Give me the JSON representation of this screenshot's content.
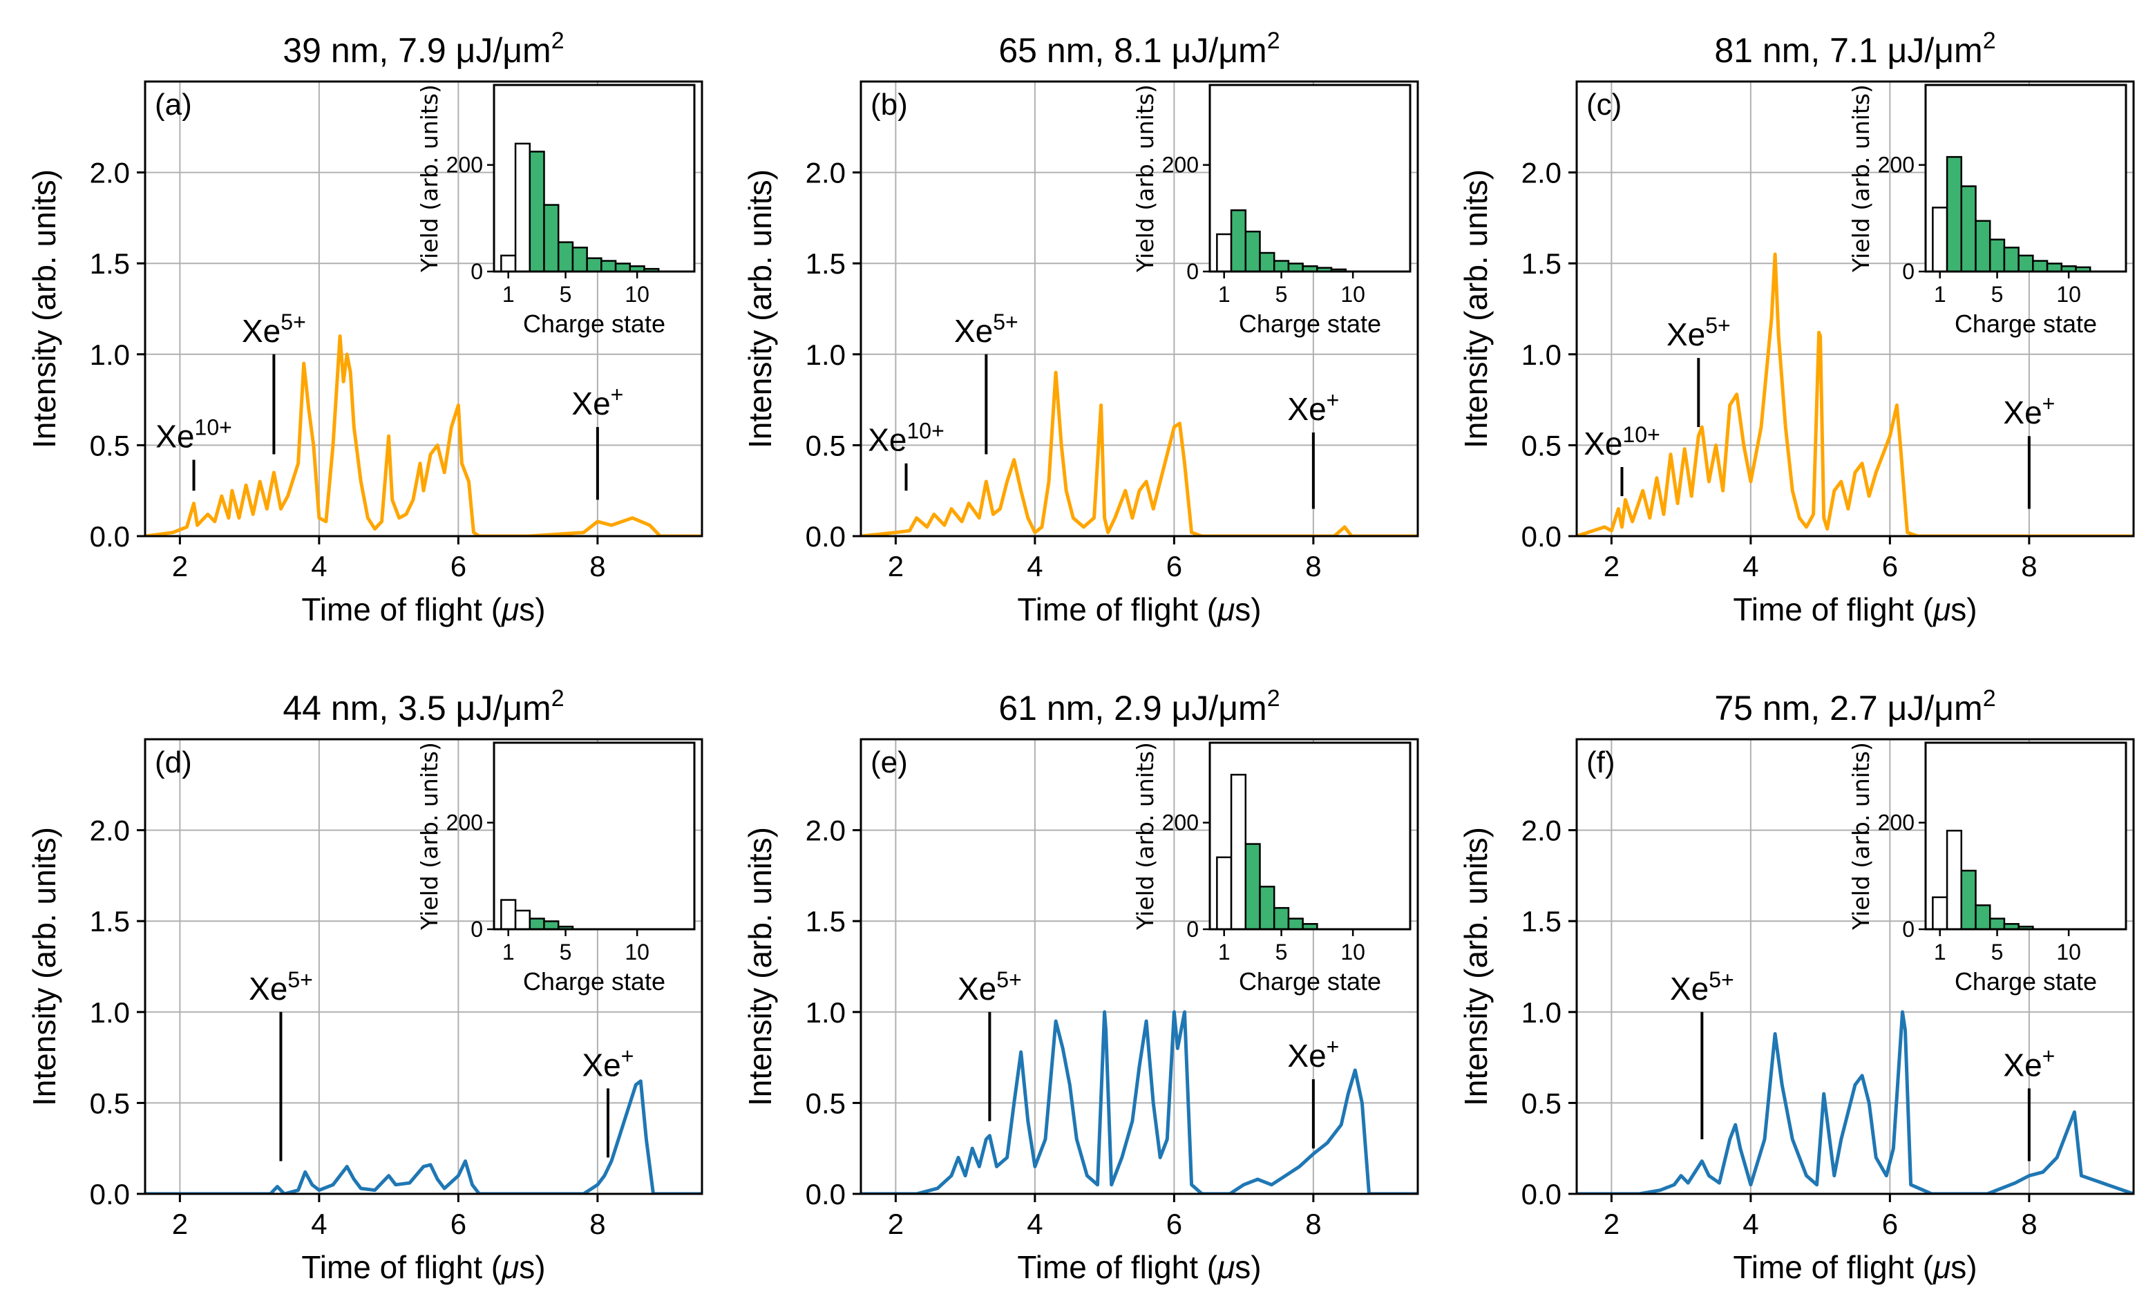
{
  "figure": {
    "shared": {
      "xlabel_prefix": "Time of flight (",
      "xlabel_mu": "μ",
      "xlabel_suffix": "s)",
      "ylabel": "Intensity (arb. units)",
      "inset_xlabel": "Charge state",
      "inset_ylabel": "Yield (arb. units)",
      "ion_base": "Xe",
      "colors": {
        "strong": "#FFA500",
        "weak": "#1F77B4",
        "green": "#3CB371",
        "open": "#FFFFFF"
      }
    }
  },
  "chart_data": [
    {
      "type": "line",
      "label": "(a)",
      "title": "39 nm, 7.9 μJ/μm",
      "title_sup": "2",
      "color": "strong",
      "xlim": [
        1.5,
        9.5
      ],
      "ylim": [
        0,
        2.5
      ],
      "xticks": [
        2,
        4,
        6,
        8
      ],
      "yticks": [
        0.0,
        0.5,
        1.0,
        1.5,
        2.0
      ],
      "xtick_labels": [
        "2",
        "4",
        "6",
        "8"
      ],
      "ytick_labels": [
        "0.0",
        "0.5",
        "1.0",
        "1.5",
        "2.0"
      ],
      "segment_x": [
        1.5,
        1.9,
        2.1,
        2.2,
        2.25,
        2.4,
        2.5,
        2.6,
        2.7,
        2.75,
        2.85,
        2.95,
        3.05,
        3.15,
        3.25,
        3.35,
        3.45,
        3.55,
        3.7,
        3.78,
        3.85,
        3.92,
        4.0,
        4.1,
        4.2,
        4.3,
        4.35,
        4.4,
        4.45,
        4.5,
        4.6,
        4.7,
        4.8,
        4.9,
        5.0,
        5.05,
        5.15,
        5.25,
        5.35,
        5.45,
        5.5,
        5.6,
        5.7,
        5.8,
        5.9,
        6.0,
        6.05,
        6.15,
        6.22,
        6.3,
        7.0,
        7.8,
        8.0,
        8.2,
        8.5,
        8.75,
        8.9,
        9.5
      ],
      "segment_y": [
        0.0,
        0.02,
        0.05,
        0.18,
        0.06,
        0.12,
        0.08,
        0.22,
        0.1,
        0.25,
        0.1,
        0.28,
        0.12,
        0.3,
        0.15,
        0.35,
        0.15,
        0.22,
        0.4,
        0.95,
        0.7,
        0.5,
        0.1,
        0.08,
        0.5,
        1.1,
        0.85,
        1.0,
        0.9,
        0.6,
        0.3,
        0.1,
        0.04,
        0.08,
        0.55,
        0.2,
        0.1,
        0.12,
        0.2,
        0.4,
        0.25,
        0.45,
        0.5,
        0.35,
        0.6,
        0.72,
        0.4,
        0.3,
        0.02,
        0.0,
        0.0,
        0.02,
        0.08,
        0.06,
        0.1,
        0.06,
        0.0,
        0.0
      ],
      "annotations": [
        {
          "charge": "10+",
          "x": 2.2,
          "y_low": 0.25,
          "y_high": 0.42
        },
        {
          "charge": "5+",
          "x": 3.35,
          "y_low": 0.45,
          "y_high": 1.0
        },
        {
          "charge": "+",
          "x": 8.0,
          "y_low": 0.2,
          "y_high": 0.6
        }
      ],
      "inset": {
        "type": "bar",
        "xlim": [
          0,
          14
        ],
        "ylim": [
          0,
          350
        ],
        "xticks": [
          1,
          5,
          10
        ],
        "yticks": [
          0,
          200
        ],
        "categories": [
          1,
          2,
          3,
          4,
          5,
          6,
          7,
          8,
          9,
          10,
          11
        ],
        "values": [
          30,
          240,
          225,
          125,
          55,
          45,
          25,
          20,
          15,
          10,
          5
        ],
        "fills": [
          "open",
          "open",
          "green",
          "green",
          "green",
          "green",
          "green",
          "green",
          "green",
          "green",
          "green"
        ]
      }
    },
    {
      "type": "line",
      "label": "(b)",
      "title": "65 nm, 8.1 μJ/μm",
      "title_sup": "2",
      "color": "strong",
      "xlim": [
        1.5,
        9.5
      ],
      "ylim": [
        0,
        2.5
      ],
      "xticks": [
        2,
        4,
        6,
        8
      ],
      "yticks": [
        0.0,
        0.5,
        1.0,
        1.5,
        2.0
      ],
      "xtick_labels": [
        "2",
        "4",
        "6",
        "8"
      ],
      "ytick_labels": [
        "0.0",
        "0.5",
        "1.0",
        "1.5",
        "2.0"
      ],
      "segment_x": [
        1.5,
        2.0,
        2.2,
        2.3,
        2.45,
        2.55,
        2.7,
        2.8,
        2.95,
        3.05,
        3.2,
        3.3,
        3.4,
        3.5,
        3.6,
        3.7,
        3.8,
        3.9,
        4.0,
        4.1,
        4.2,
        4.3,
        4.38,
        4.45,
        4.55,
        4.7,
        4.85,
        4.95,
        5.0,
        5.05,
        5.15,
        5.3,
        5.4,
        5.5,
        5.6,
        5.7,
        5.8,
        5.9,
        6.0,
        6.08,
        6.15,
        6.25,
        6.4,
        8.0,
        8.3,
        8.45,
        8.55,
        9.5
      ],
      "segment_y": [
        0.0,
        0.02,
        0.03,
        0.1,
        0.05,
        0.12,
        0.06,
        0.15,
        0.08,
        0.18,
        0.1,
        0.3,
        0.12,
        0.15,
        0.3,
        0.42,
        0.25,
        0.1,
        0.02,
        0.05,
        0.3,
        0.9,
        0.5,
        0.25,
        0.1,
        0.05,
        0.1,
        0.72,
        0.1,
        0.02,
        0.1,
        0.25,
        0.1,
        0.25,
        0.3,
        0.15,
        0.3,
        0.45,
        0.6,
        0.62,
        0.4,
        0.02,
        0.0,
        0.0,
        0.0,
        0.05,
        0.0,
        0.0
      ],
      "annotations": [
        {
          "charge": "10+",
          "x": 2.15,
          "y_low": 0.25,
          "y_high": 0.4
        },
        {
          "charge": "5+",
          "x": 3.3,
          "y_low": 0.45,
          "y_high": 1.0
        },
        {
          "charge": "+",
          "x": 8.0,
          "y_low": 0.15,
          "y_high": 0.57
        }
      ],
      "inset": {
        "type": "bar",
        "xlim": [
          0,
          14
        ],
        "ylim": [
          0,
          350
        ],
        "xticks": [
          1,
          5,
          10
        ],
        "yticks": [
          0,
          200
        ],
        "categories": [
          1,
          2,
          3,
          4,
          5,
          6,
          7,
          8,
          9
        ],
        "values": [
          70,
          115,
          75,
          35,
          20,
          15,
          10,
          7,
          4
        ],
        "fills": [
          "open",
          "green",
          "green",
          "green",
          "green",
          "green",
          "green",
          "green",
          "green"
        ]
      }
    },
    {
      "type": "line",
      "label": "(c)",
      "title": "81 nm, 7.1 μJ/μm",
      "title_sup": "2",
      "color": "strong",
      "xlim": [
        1.5,
        9.5
      ],
      "ylim": [
        0,
        2.5
      ],
      "xticks": [
        2,
        4,
        6,
        8
      ],
      "yticks": [
        0.0,
        0.5,
        1.0,
        1.5,
        2.0
      ],
      "xtick_labels": [
        "2",
        "4",
        "6",
        "8"
      ],
      "ytick_labels": [
        "0.0",
        "0.5",
        "1.0",
        "1.5",
        "2.0"
      ],
      "segment_x": [
        1.5,
        1.9,
        2.0,
        2.1,
        2.15,
        2.2,
        2.3,
        2.45,
        2.55,
        2.65,
        2.75,
        2.85,
        2.95,
        3.05,
        3.15,
        3.25,
        3.3,
        3.4,
        3.5,
        3.6,
        3.7,
        3.8,
        3.9,
        4.0,
        4.15,
        4.3,
        4.35,
        4.4,
        4.5,
        4.6,
        4.7,
        4.8,
        4.9,
        4.98,
        5.0,
        5.05,
        5.1,
        5.2,
        5.3,
        5.4,
        5.5,
        5.6,
        5.7,
        5.8,
        5.9,
        6.0,
        6.1,
        6.15,
        6.25,
        6.4,
        9.5
      ],
      "segment_y": [
        0.0,
        0.05,
        0.03,
        0.15,
        0.05,
        0.2,
        0.08,
        0.25,
        0.1,
        0.32,
        0.12,
        0.45,
        0.18,
        0.48,
        0.22,
        0.55,
        0.6,
        0.3,
        0.5,
        0.25,
        0.72,
        0.78,
        0.5,
        0.3,
        0.6,
        1.2,
        1.55,
        1.1,
        0.6,
        0.25,
        0.1,
        0.05,
        0.12,
        1.12,
        1.1,
        0.1,
        0.04,
        0.25,
        0.3,
        0.15,
        0.35,
        0.4,
        0.22,
        0.35,
        0.45,
        0.55,
        0.72,
        0.5,
        0.02,
        0.0,
        0.0
      ],
      "annotations": [
        {
          "charge": "10+",
          "x": 2.15,
          "y_low": 0.22,
          "y_high": 0.38
        },
        {
          "charge": "5+",
          "x": 3.25,
          "y_low": 0.6,
          "y_high": 0.98
        },
        {
          "charge": "+",
          "x": 8.0,
          "y_low": 0.15,
          "y_high": 0.55
        }
      ],
      "inset": {
        "type": "bar",
        "xlim": [
          0,
          14
        ],
        "ylim": [
          0,
          350
        ],
        "xticks": [
          1,
          5,
          10
        ],
        "yticks": [
          0,
          200
        ],
        "categories": [
          1,
          2,
          3,
          4,
          5,
          6,
          7,
          8,
          9,
          10,
          11
        ],
        "values": [
          120,
          215,
          160,
          95,
          60,
          45,
          30,
          20,
          15,
          10,
          8
        ],
        "fills": [
          "open",
          "green",
          "green",
          "green",
          "green",
          "green",
          "green",
          "green",
          "green",
          "green",
          "green"
        ]
      }
    },
    {
      "type": "line",
      "label": "(d)",
      "title": "44 nm, 3.5 μJ/μm",
      "title_sup": "2",
      "color": "weak",
      "xlim": [
        1.5,
        9.5
      ],
      "ylim": [
        0,
        2.5
      ],
      "xticks": [
        2,
        4,
        6,
        8
      ],
      "yticks": [
        0.0,
        0.5,
        1.0,
        1.5,
        2.0
      ],
      "xtick_labels": [
        "2",
        "4",
        "6",
        "8"
      ],
      "ytick_labels": [
        "0.0",
        "0.5",
        "1.0",
        "1.5",
        "2.0"
      ],
      "segment_x": [
        1.5,
        3.3,
        3.4,
        3.5,
        3.7,
        3.8,
        3.9,
        4.0,
        4.2,
        4.4,
        4.5,
        4.6,
        4.8,
        5.0,
        5.1,
        5.3,
        5.5,
        5.6,
        5.7,
        5.8,
        6.0,
        6.1,
        6.2,
        6.3,
        7.8,
        8.0,
        8.1,
        8.2,
        8.3,
        8.45,
        8.55,
        8.62,
        8.7,
        8.8,
        9.5
      ],
      "segment_y": [
        0.0,
        0.0,
        0.04,
        0.0,
        0.02,
        0.12,
        0.05,
        0.02,
        0.05,
        0.15,
        0.08,
        0.03,
        0.02,
        0.1,
        0.05,
        0.06,
        0.15,
        0.16,
        0.08,
        0.03,
        0.1,
        0.18,
        0.05,
        0.0,
        0.0,
        0.05,
        0.1,
        0.18,
        0.3,
        0.48,
        0.6,
        0.62,
        0.3,
        0.0,
        0.0
      ],
      "annotations": [
        {
          "charge": "5+",
          "x": 3.45,
          "y_low": 0.18,
          "y_high": 1.0
        },
        {
          "charge": "+",
          "x": 8.15,
          "y_low": 0.2,
          "y_high": 0.58
        }
      ],
      "inset": {
        "type": "bar",
        "xlim": [
          0,
          14
        ],
        "ylim": [
          0,
          350
        ],
        "xticks": [
          1,
          5,
          10
        ],
        "yticks": [
          0,
          200
        ],
        "categories": [
          1,
          2,
          3,
          4,
          5
        ],
        "values": [
          55,
          35,
          20,
          15,
          5
        ],
        "fills": [
          "open",
          "open",
          "green",
          "green",
          "green"
        ]
      }
    },
    {
      "type": "line",
      "label": "(e)",
      "title": "61 nm, 2.9 μJ/μm",
      "title_sup": "2",
      "color": "weak",
      "xlim": [
        1.5,
        9.5
      ],
      "ylim": [
        0,
        2.5
      ],
      "xticks": [
        2,
        4,
        6,
        8
      ],
      "yticks": [
        0.0,
        0.5,
        1.0,
        1.5,
        2.0
      ],
      "xtick_labels": [
        "2",
        "4",
        "6",
        "8"
      ],
      "ytick_labels": [
        "0.0",
        "0.5",
        "1.0",
        "1.5",
        "2.0"
      ],
      "segment_x": [
        1.5,
        2.3,
        2.6,
        2.8,
        2.9,
        3.0,
        3.1,
        3.2,
        3.3,
        3.35,
        3.45,
        3.6,
        3.7,
        3.8,
        3.9,
        4.0,
        4.15,
        4.3,
        4.4,
        4.5,
        4.6,
        4.75,
        4.9,
        5.0,
        5.02,
        5.1,
        5.25,
        5.4,
        5.5,
        5.6,
        5.7,
        5.8,
        5.9,
        6.0,
        6.05,
        6.15,
        6.25,
        6.4,
        6.8,
        7.0,
        7.2,
        7.4,
        7.6,
        7.8,
        8.0,
        8.2,
        8.4,
        8.5,
        8.6,
        8.7,
        8.8,
        9.5
      ],
      "segment_y": [
        0.0,
        0.0,
        0.03,
        0.1,
        0.2,
        0.1,
        0.25,
        0.15,
        0.3,
        0.32,
        0.15,
        0.2,
        0.5,
        0.78,
        0.4,
        0.15,
        0.3,
        0.95,
        0.8,
        0.6,
        0.3,
        0.1,
        0.05,
        1.0,
        0.9,
        0.05,
        0.2,
        0.4,
        0.7,
        0.95,
        0.5,
        0.2,
        0.3,
        1.0,
        0.8,
        1.0,
        0.05,
        0.0,
        0.0,
        0.05,
        0.08,
        0.05,
        0.1,
        0.15,
        0.22,
        0.28,
        0.38,
        0.55,
        0.68,
        0.5,
        0.0,
        0.0
      ],
      "annotations": [
        {
          "charge": "5+",
          "x": 3.35,
          "y_low": 0.4,
          "y_high": 1.0
        },
        {
          "charge": "+",
          "x": 8.0,
          "y_low": 0.25,
          "y_high": 0.63
        }
      ],
      "inset": {
        "type": "bar",
        "xlim": [
          0,
          14
        ],
        "ylim": [
          0,
          350
        ],
        "xticks": [
          1,
          5,
          10
        ],
        "yticks": [
          0,
          200
        ],
        "categories": [
          1,
          2,
          3,
          4,
          5,
          6,
          7
        ],
        "values": [
          135,
          290,
          160,
          80,
          40,
          20,
          10
        ],
        "fills": [
          "open",
          "open",
          "green",
          "green",
          "green",
          "green",
          "green"
        ]
      }
    },
    {
      "type": "line",
      "label": "(f)",
      "title": "75 nm, 2.7 μJ/μm",
      "title_sup": "2",
      "color": "weak",
      "xlim": [
        1.5,
        9.5
      ],
      "ylim": [
        0,
        2.5
      ],
      "xticks": [
        2,
        4,
        6,
        8
      ],
      "yticks": [
        0.0,
        0.5,
        1.0,
        1.5,
        2.0
      ],
      "xtick_labels": [
        "2",
        "4",
        "6",
        "8"
      ],
      "ytick_labels": [
        "0.0",
        "0.5",
        "1.0",
        "1.5",
        "2.0"
      ],
      "segment_x": [
        1.5,
        2.4,
        2.7,
        2.9,
        3.0,
        3.1,
        3.2,
        3.3,
        3.4,
        3.55,
        3.7,
        3.78,
        3.85,
        4.0,
        4.2,
        4.35,
        4.45,
        4.6,
        4.8,
        4.95,
        5.05,
        5.1,
        5.2,
        5.3,
        5.4,
        5.5,
        5.6,
        5.7,
        5.8,
        5.95,
        6.05,
        6.18,
        6.22,
        6.3,
        6.6,
        7.4,
        7.6,
        7.8,
        8.0,
        8.2,
        8.4,
        8.55,
        8.65,
        8.75,
        9.5
      ],
      "segment_y": [
        0.0,
        0.0,
        0.02,
        0.05,
        0.1,
        0.06,
        0.12,
        0.18,
        0.1,
        0.06,
        0.3,
        0.38,
        0.25,
        0.05,
        0.3,
        0.88,
        0.6,
        0.3,
        0.1,
        0.05,
        0.55,
        0.4,
        0.1,
        0.3,
        0.45,
        0.6,
        0.65,
        0.5,
        0.2,
        0.1,
        0.25,
        1.0,
        0.9,
        0.05,
        0.0,
        0.0,
        0.03,
        0.06,
        0.1,
        0.12,
        0.2,
        0.35,
        0.45,
        0.1,
        0.0
      ],
      "annotations": [
        {
          "charge": "5+",
          "x": 3.3,
          "y_low": 0.3,
          "y_high": 1.0
        },
        {
          "charge": "+",
          "x": 8.0,
          "y_low": 0.18,
          "y_high": 0.58
        }
      ],
      "inset": {
        "type": "bar",
        "xlim": [
          0,
          14
        ],
        "ylim": [
          0,
          350
        ],
        "xticks": [
          1,
          5,
          10
        ],
        "yticks": [
          0,
          200
        ],
        "categories": [
          1,
          2,
          3,
          4,
          5,
          6,
          7
        ],
        "values": [
          60,
          185,
          110,
          45,
          20,
          10,
          5
        ],
        "fills": [
          "open",
          "open",
          "green",
          "green",
          "green",
          "green",
          "green"
        ]
      }
    }
  ]
}
